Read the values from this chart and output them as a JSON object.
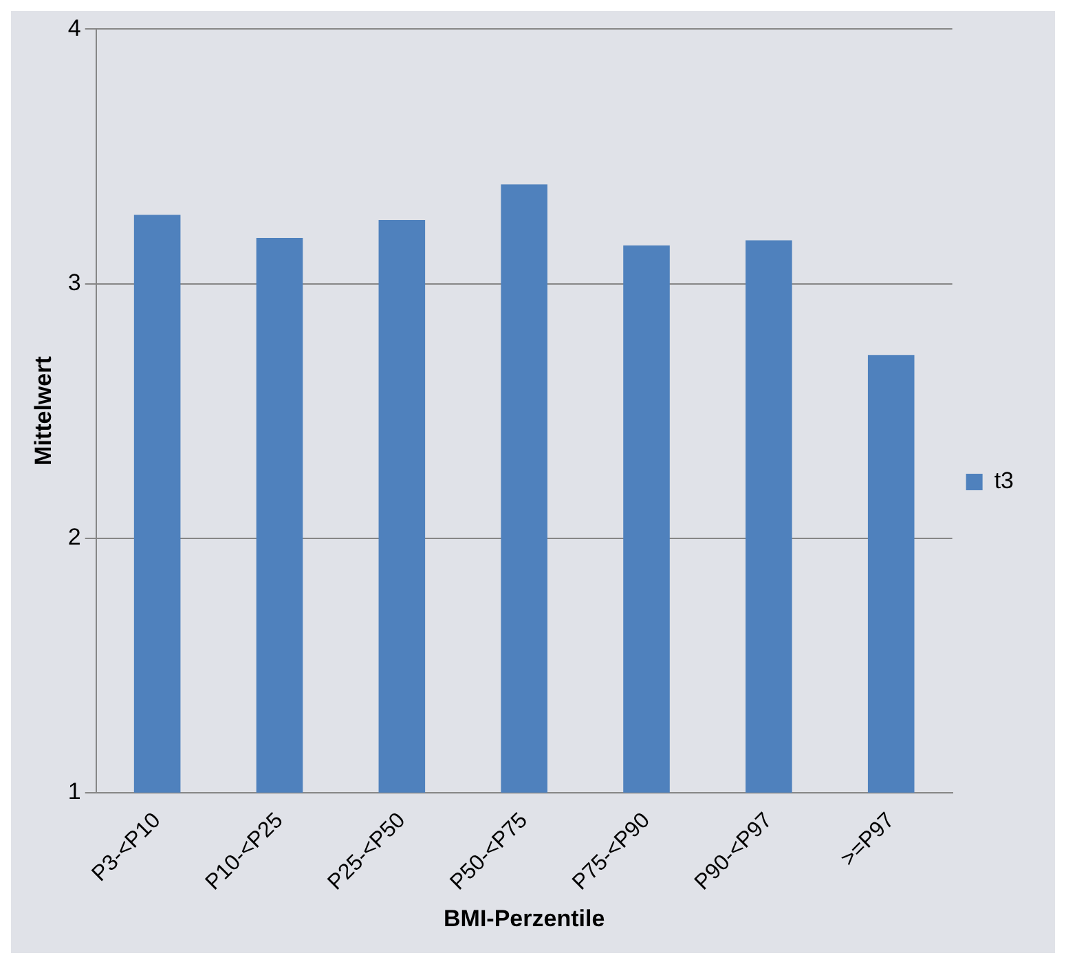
{
  "chart_data": {
    "type": "bar",
    "xlabel": "BMI-Perzentile",
    "ylabel": "Mittelwert",
    "categories": [
      "P3-<P10",
      "P10-<P25",
      "P25-<P50",
      "P50-<P75",
      "P75-<P90",
      "P90-<P97",
      ">=P97"
    ],
    "series": [
      {
        "name": "t3",
        "color": "#4f81bd",
        "values": [
          3.27,
          3.18,
          3.25,
          3.39,
          3.15,
          3.17,
          2.72
        ]
      }
    ],
    "ylim": [
      1,
      4
    ],
    "yticks": [
      1,
      2,
      3,
      4
    ],
    "grid": "y",
    "legend": "right"
  }
}
